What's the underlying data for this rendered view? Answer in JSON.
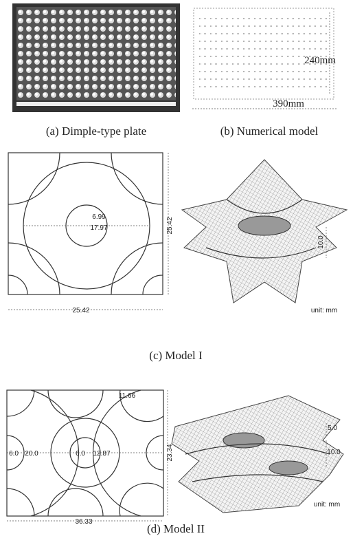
{
  "panels": [
    {
      "caption": "(a) Dimple-type plate"
    },
    {
      "caption": "(b) Numerical model",
      "labels": [
        "240mm",
        "390mm"
      ]
    },
    {
      "caption": "(c) Model I",
      "labels": [
        "6.99",
        "17.97",
        "25.42",
        "25.42",
        "10.0"
      ],
      "unit": "unit: mm"
    },
    {
      "caption": "(d) Model II",
      "labels": [
        "11.66",
        "6.0",
        "20.0",
        "6.0",
        "12.87",
        "23.34",
        "36.33",
        "5.0",
        "10.0"
      ],
      "unit": "unit: mm"
    }
  ]
}
